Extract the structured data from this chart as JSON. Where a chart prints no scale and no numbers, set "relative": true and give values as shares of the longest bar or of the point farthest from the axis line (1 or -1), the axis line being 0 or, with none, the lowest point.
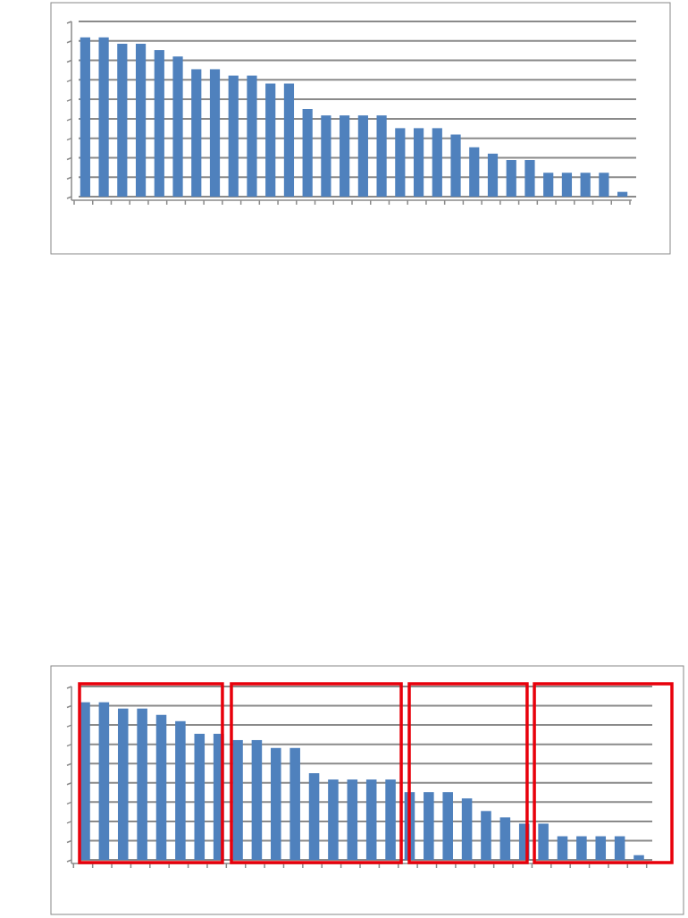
{
  "chart_data": [
    {
      "type": "bar",
      "categories": [
        null,
        null,
        null,
        null,
        null,
        null,
        null,
        null,
        null,
        null,
        null,
        null,
        null,
        null,
        null,
        null,
        null,
        null,
        null,
        null,
        null,
        null,
        null,
        null,
        null,
        null,
        null,
        null,
        null,
        null
      ],
      "values": [
        1,
        1,
        0.96,
        0.96,
        0.92,
        0.88,
        0.8,
        0.8,
        0.76,
        0.76,
        0.71,
        0.71,
        0.55,
        0.51,
        0.51,
        0.51,
        0.51,
        0.43,
        0.43,
        0.43,
        0.39,
        0.31,
        0.27,
        0.23,
        0.23,
        0.15,
        0.15,
        0.15,
        0.15,
        0.03
      ],
      "color": "#4f81bd",
      "relative": true,
      "grid": "y"
    },
    {
      "type": "bar",
      "categories": [
        null,
        null,
        null,
        null,
        null,
        null,
        null,
        null,
        null,
        null,
        null,
        null,
        null,
        null,
        null,
        null,
        null,
        null,
        null,
        null,
        null,
        null,
        null,
        null,
        null,
        null,
        null,
        null,
        null,
        null
      ],
      "values": [
        1,
        1,
        0.96,
        0.96,
        0.92,
        0.88,
        0.8,
        0.8,
        0.76,
        0.76,
        0.71,
        0.71,
        0.55,
        0.51,
        0.51,
        0.51,
        0.51,
        0.43,
        0.43,
        0.43,
        0.39,
        0.31,
        0.27,
        0.23,
        0.23,
        0.15,
        0.15,
        0.15,
        0.15,
        0.03
      ],
      "color": "#4f81bd",
      "relative": true,
      "grid": "y"
    }
  ]
}
